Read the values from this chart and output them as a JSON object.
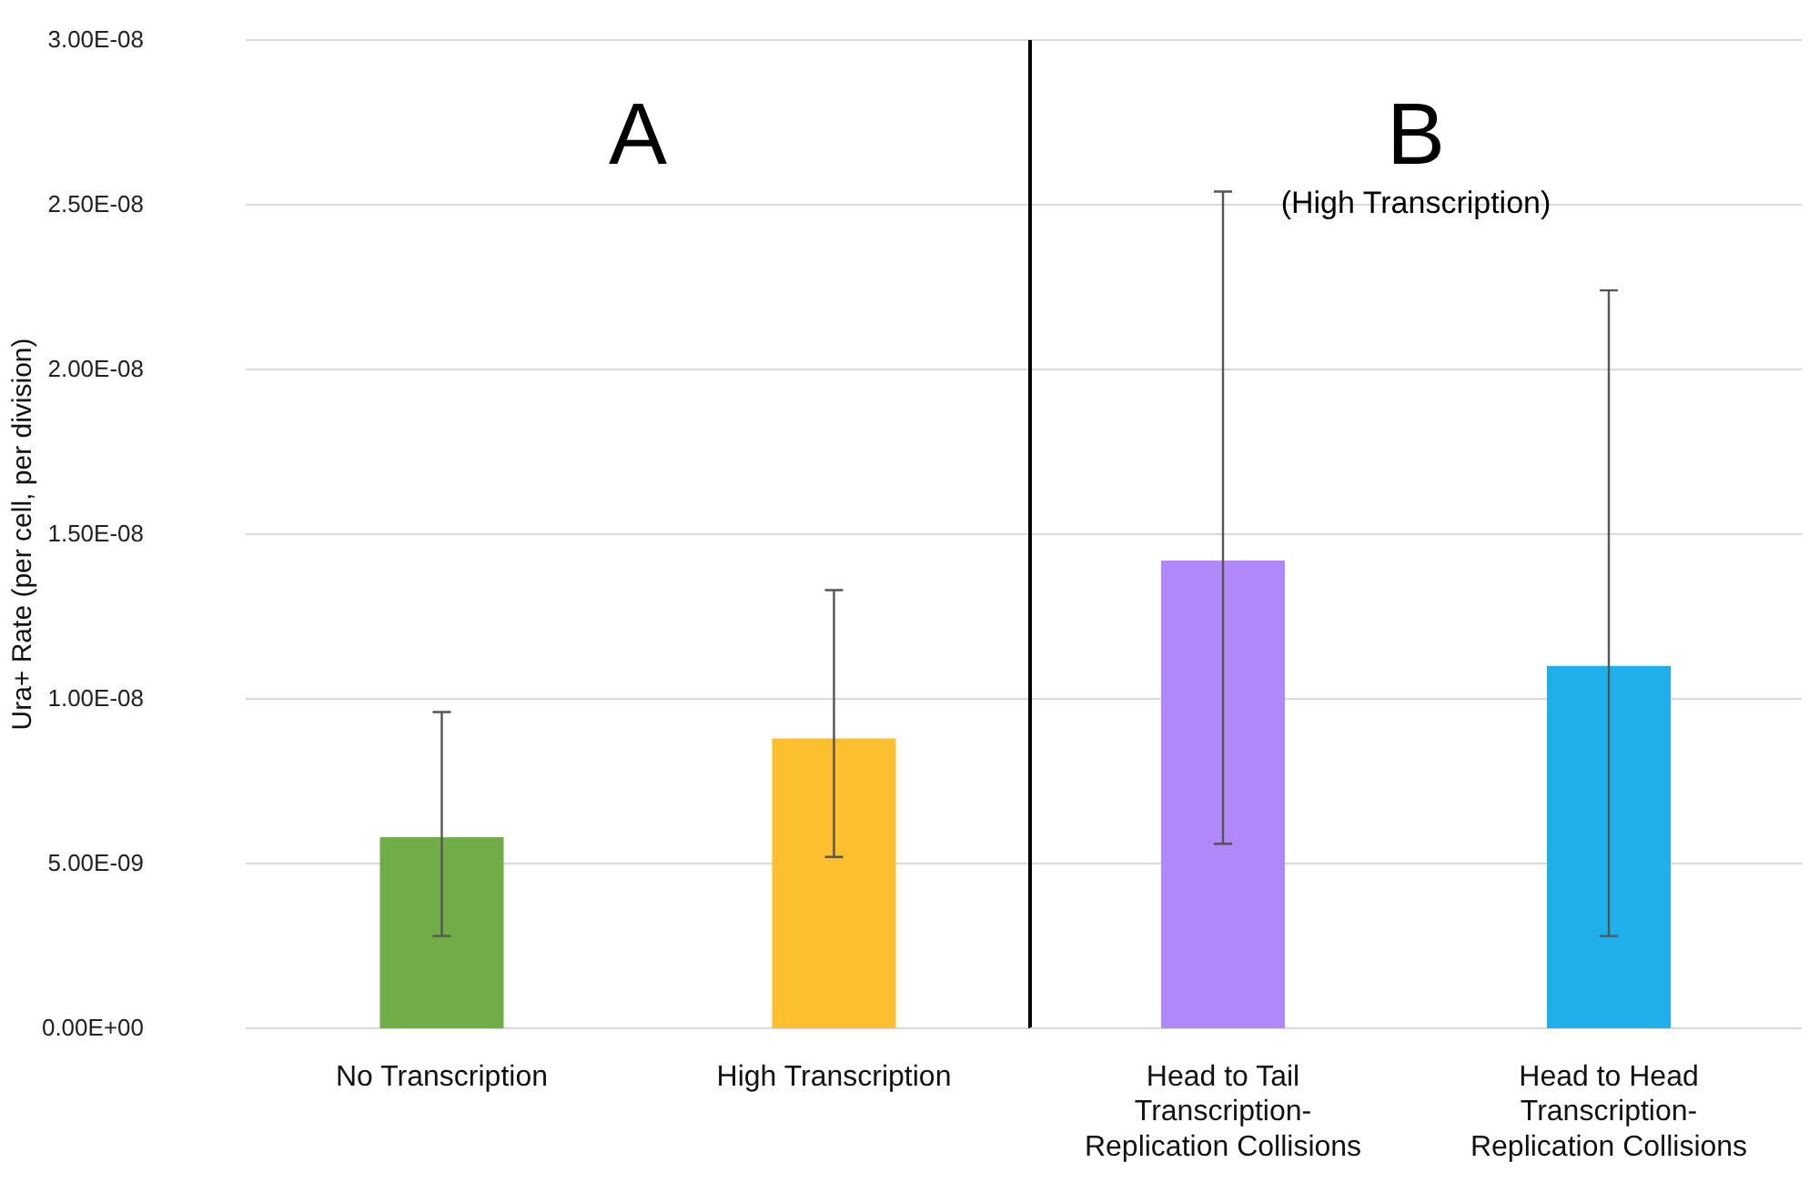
{
  "chart_data": [
    {
      "type": "bar",
      "ylabel": "Ura+ Rate (per cell, per division)",
      "categories": [
        "No Transcription",
        "High Transcription"
      ],
      "values": [
        5.8e-09,
        8.8e-09
      ],
      "colors": [
        "#70ad47",
        "#fbbf2f"
      ],
      "errors": [
        [
          2.8e-09,
          9.6e-09
        ],
        [
          5.2e-09,
          1.33e-08
        ]
      ],
      "ylim": [
        0,
        3e-08
      ],
      "yticks": [
        {
          "value": 0,
          "label": "0.00E+00"
        },
        {
          "value": 5e-09,
          "label": "5.00E-09"
        },
        {
          "value": 1e-08,
          "label": "1.00E-08"
        },
        {
          "value": 1.5e-08,
          "label": "1.50E-08"
        },
        {
          "value": 2e-08,
          "label": "2.00E-08"
        },
        {
          "value": 2.5e-08,
          "label": "2.50E-08"
        },
        {
          "value": 3e-08,
          "label": "3.00E-08"
        }
      ],
      "grid": "y",
      "annotations": [
        "A"
      ]
    },
    {
      "type": "bar",
      "categories": [
        "Head to Tail Transcription-Replication Collisions",
        "Head to Head Transcription-Replication Collisions"
      ],
      "values": [
        1.42e-08,
        1.1e-08
      ],
      "colors": [
        "#b088f9",
        "#1fb0ec"
      ],
      "errors": [
        [
          5.6e-09,
          2.54e-08
        ],
        [
          2.8e-09,
          2.24e-08
        ]
      ],
      "ylim": [
        0,
        3e-08
      ],
      "yticks": [
        0,
        5e-09,
        1e-08,
        1.5e-08,
        2e-08,
        2.5e-08,
        3e-08
      ],
      "tick_labels": "x",
      "grid": "y",
      "annotations": [
        "B",
        "(High Transcription)"
      ]
    }
  ]
}
